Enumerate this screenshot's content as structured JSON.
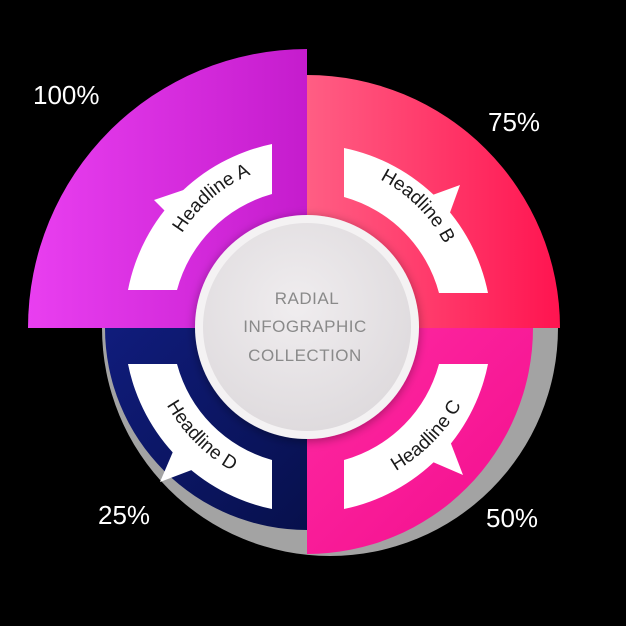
{
  "center": {
    "lines": [
      "RADIAL",
      "INFOGRAPHIC",
      "COLLECTION"
    ]
  },
  "segments": [
    {
      "key": "a",
      "headline": "Headline A",
      "percent_label": "100%",
      "value": 100,
      "gradient": [
        "#e93ff0",
        "#c51ccd"
      ]
    },
    {
      "key": "b",
      "headline": "Headline B",
      "percent_label": "75%",
      "value": 75,
      "gradient": [
        "#ff5e84",
        "#ff1450"
      ]
    },
    {
      "key": "c",
      "headline": "Headline C",
      "percent_label": "50%",
      "value": 50,
      "gradient": [
        "#ff2aa2",
        "#f20d8d"
      ]
    },
    {
      "key": "d",
      "headline": "Headline D",
      "percent_label": "25%",
      "value": 25,
      "gradient": [
        "#0e1a78",
        "#08104f"
      ]
    }
  ],
  "colors": {
    "background": "#000000",
    "base_ring": "#a3a3a3",
    "arrow_band": "#ffffff",
    "center_disc": "#e9e6e8"
  }
}
